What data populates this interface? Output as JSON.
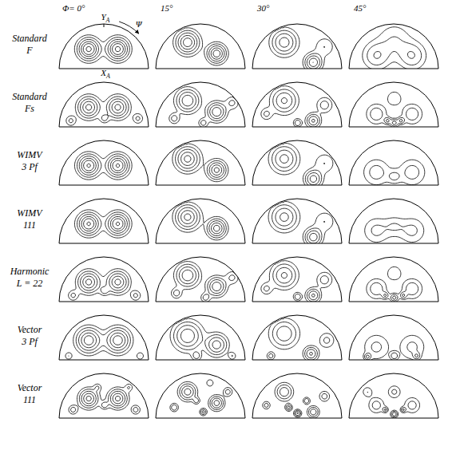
{
  "chart_data": {
    "type": "contour",
    "columns": [
      "Φ= 0°",
      "15°",
      "30°",
      "45°"
    ],
    "axes": {
      "y": {
        "base": "Y",
        "sub": "A"
      },
      "x": {
        "base": "X",
        "sub": "A"
      },
      "angle": "Ψ"
    },
    "levels": [
      0.15,
      0.3,
      0.5,
      0.75,
      1.0,
      1.3
    ],
    "rows": [
      {
        "label": [
          "Standard",
          "F"
        ],
        "panels": [
          [
            [
              -0.35,
              0.45,
              1.4,
              0.15
            ],
            [
              0.3,
              0.45,
              1.4,
              0.15
            ]
          ],
          [
            [
              -0.3,
              0.6,
              1.2,
              0.16
            ],
            [
              0.35,
              0.35,
              1.2,
              0.13
            ]
          ],
          [
            [
              -0.3,
              0.6,
              0.9,
              0.18
            ],
            [
              0.35,
              0.15,
              1.0,
              0.12
            ],
            [
              0.6,
              0.5,
              0.3,
              0.15
            ]
          ],
          [
            [
              -0.4,
              0.3,
              0.5,
              0.2
            ],
            [
              0.4,
              0.3,
              0.5,
              0.2
            ],
            [
              0.0,
              0.65,
              0.3,
              0.25
            ]
          ]
        ]
      },
      {
        "label": [
          "Standard",
          "Fs"
        ],
        "panels": [
          [
            [
              -0.35,
              0.45,
              1.1,
              0.15
            ],
            [
              0.3,
              0.45,
              1.1,
              0.15
            ],
            [
              0.0,
              0.2,
              0.35,
              0.07
            ],
            [
              -0.75,
              0.15,
              0.35,
              0.08
            ],
            [
              0.75,
              0.2,
              0.35,
              0.08
            ]
          ],
          [
            [
              -0.3,
              0.6,
              1.0,
              0.16
            ],
            [
              0.35,
              0.35,
              1.0,
              0.13
            ],
            [
              -0.6,
              0.2,
              0.4,
              0.08
            ],
            [
              0.05,
              0.1,
              0.4,
              0.07
            ],
            [
              0.7,
              0.55,
              0.35,
              0.1
            ]
          ],
          [
            [
              -0.3,
              0.6,
              0.8,
              0.18
            ],
            [
              0.35,
              0.15,
              0.8,
              0.1
            ],
            [
              0.0,
              0.1,
              0.5,
              0.06
            ],
            [
              0.6,
              0.5,
              0.4,
              0.12
            ],
            [
              -0.7,
              0.3,
              0.35,
              0.09
            ]
          ],
          [
            [
              -0.4,
              0.3,
              0.45,
              0.15
            ],
            [
              0.4,
              0.3,
              0.45,
              0.15
            ],
            [
              0.0,
              0.1,
              0.6,
              0.06
            ],
            [
              -0.15,
              0.15,
              0.5,
              0.05
            ],
            [
              0.15,
              0.15,
              0.5,
              0.05
            ],
            [
              0.0,
              0.65,
              0.3,
              0.12
            ]
          ]
        ]
      },
      {
        "label": [
          "WIMV",
          "3 Pf"
        ],
        "panels": [
          [
            [
              -0.35,
              0.45,
              1.35,
              0.15
            ],
            [
              0.3,
              0.45,
              1.35,
              0.15
            ]
          ],
          [
            [
              -0.3,
              0.6,
              1.1,
              0.17
            ],
            [
              0.35,
              0.35,
              1.1,
              0.13
            ]
          ],
          [
            [
              -0.3,
              0.6,
              0.85,
              0.19
            ],
            [
              0.35,
              0.15,
              0.9,
              0.12
            ],
            [
              0.6,
              0.5,
              0.3,
              0.16
            ]
          ],
          [
            [
              -0.4,
              0.3,
              0.4,
              0.2
            ],
            [
              0.4,
              0.3,
              0.4,
              0.2
            ],
            [
              0.0,
              0.2,
              0.3,
              0.1
            ]
          ]
        ]
      },
      {
        "label": [
          "WIMV",
          "111"
        ],
        "panels": [
          [
            [
              -0.35,
              0.45,
              1.35,
              0.15
            ],
            [
              0.3,
              0.45,
              1.35,
              0.15
            ]
          ],
          [
            [
              -0.3,
              0.6,
              1.1,
              0.17
            ],
            [
              0.35,
              0.35,
              1.15,
              0.13
            ]
          ],
          [
            [
              -0.3,
              0.6,
              0.85,
              0.19
            ],
            [
              0.35,
              0.15,
              0.95,
              0.12
            ],
            [
              0.6,
              0.5,
              0.3,
              0.16
            ]
          ],
          [
            [
              -0.4,
              0.3,
              0.35,
              0.2
            ],
            [
              0.4,
              0.3,
              0.35,
              0.2
            ],
            [
              0.0,
              0.4,
              0.25,
              0.15
            ]
          ]
        ]
      },
      {
        "label": [
          "Harmonic",
          "L = 22"
        ],
        "panels": [
          [
            [
              -0.35,
              0.45,
              1.1,
              0.15
            ],
            [
              0.3,
              0.45,
              1.1,
              0.15
            ],
            [
              0.0,
              0.25,
              0.35,
              0.07
            ],
            [
              -0.7,
              0.15,
              0.35,
              0.08
            ],
            [
              0.7,
              0.15,
              0.35,
              0.08
            ]
          ],
          [
            [
              -0.3,
              0.6,
              1.0,
              0.16
            ],
            [
              0.35,
              0.35,
              1.0,
              0.13
            ],
            [
              -0.55,
              0.2,
              0.4,
              0.08
            ],
            [
              0.1,
              0.1,
              0.4,
              0.07
            ],
            [
              0.7,
              0.55,
              0.35,
              0.1
            ]
          ],
          [
            [
              -0.3,
              0.6,
              0.8,
              0.18
            ],
            [
              0.35,
              0.15,
              0.8,
              0.1
            ],
            [
              0.0,
              0.12,
              0.5,
              0.06
            ],
            [
              0.6,
              0.5,
              0.4,
              0.12
            ],
            [
              -0.7,
              0.3,
              0.35,
              0.09
            ]
          ],
          [
            [
              -0.4,
              0.3,
              0.45,
              0.15
            ],
            [
              0.4,
              0.3,
              0.45,
              0.15
            ],
            [
              0.0,
              0.1,
              0.6,
              0.06
            ],
            [
              -0.2,
              0.15,
              0.45,
              0.05
            ],
            [
              0.2,
              0.15,
              0.45,
              0.05
            ],
            [
              0.0,
              0.65,
              0.3,
              0.12
            ]
          ]
        ]
      },
      {
        "label": [
          "Vector",
          "3 Pf"
        ],
        "panels": [
          [
            [
              -0.35,
              0.45,
              1.2,
              0.17
            ],
            [
              0.3,
              0.45,
              1.2,
              0.17
            ],
            [
              -0.8,
              0.1,
              0.3,
              0.06
            ],
            [
              0.8,
              0.1,
              0.3,
              0.06
            ]
          ],
          [
            [
              -0.3,
              0.55,
              1.0,
              0.2
            ],
            [
              0.35,
              0.35,
              0.9,
              0.15
            ],
            [
              -0.1,
              0.1,
              0.4,
              0.07
            ],
            [
              0.7,
              0.1,
              0.3,
              0.06
            ]
          ],
          [
            [
              -0.3,
              0.6,
              0.7,
              0.2
            ],
            [
              0.3,
              0.15,
              0.8,
              0.1
            ],
            [
              -0.6,
              0.1,
              0.4,
              0.06
            ],
            [
              0.65,
              0.45,
              0.35,
              0.12
            ]
          ],
          [
            [
              -0.4,
              0.3,
              0.35,
              0.2
            ],
            [
              0.4,
              0.3,
              0.35,
              0.2
            ],
            [
              -0.6,
              0.08,
              0.5,
              0.05
            ],
            [
              0.0,
              0.1,
              0.45,
              0.06
            ],
            [
              0.5,
              0.1,
              0.4,
              0.05
            ]
          ]
        ]
      },
      {
        "label": [
          "Vector",
          "111"
        ],
        "panels": [
          [
            [
              -0.35,
              0.45,
              1.1,
              0.13
            ],
            [
              0.3,
              0.45,
              1.1,
              0.13
            ],
            [
              0.0,
              0.3,
              0.4,
              0.06
            ],
            [
              -0.7,
              0.2,
              0.4,
              0.07
            ],
            [
              0.7,
              0.2,
              0.4,
              0.07
            ],
            [
              -0.15,
              0.7,
              0.3,
              0.06
            ],
            [
              0.55,
              0.7,
              0.3,
              0.06
            ]
          ],
          [
            [
              -0.3,
              0.6,
              0.9,
              0.12
            ],
            [
              0.35,
              0.35,
              0.9,
              0.1
            ],
            [
              -0.6,
              0.25,
              0.5,
              0.06
            ],
            [
              0.05,
              0.15,
              0.6,
              0.05
            ],
            [
              0.6,
              0.6,
              0.4,
              0.07
            ],
            [
              -0.1,
              0.4,
              0.4,
              0.05
            ],
            [
              0.2,
              0.8,
              0.3,
              0.06
            ]
          ],
          [
            [
              -0.3,
              0.6,
              0.7,
              0.12
            ],
            [
              0.35,
              0.15,
              0.7,
              0.08
            ],
            [
              0.0,
              0.12,
              0.8,
              0.05
            ],
            [
              -0.2,
              0.25,
              0.6,
              0.05
            ],
            [
              0.6,
              0.5,
              0.4,
              0.08
            ],
            [
              -0.7,
              0.3,
              0.4,
              0.06
            ],
            [
              0.2,
              0.4,
              0.5,
              0.05
            ]
          ],
          [
            [
              -0.4,
              0.3,
              0.4,
              0.12
            ],
            [
              0.4,
              0.3,
              0.4,
              0.12
            ],
            [
              0.0,
              0.1,
              0.7,
              0.05
            ],
            [
              -0.2,
              0.2,
              0.5,
              0.04
            ],
            [
              0.2,
              0.2,
              0.5,
              0.04
            ],
            [
              0.0,
              0.6,
              0.35,
              0.1
            ],
            [
              -0.6,
              0.6,
              0.3,
              0.08
            ]
          ]
        ]
      }
    ]
  }
}
